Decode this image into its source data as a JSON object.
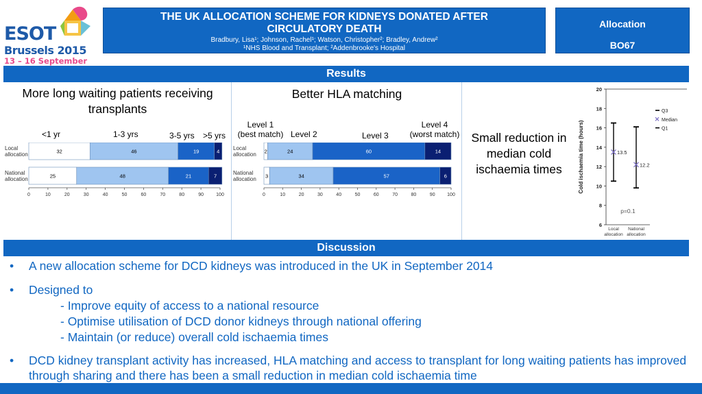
{
  "logo": {
    "brand": "ESOT",
    "city": "Brussels 2015",
    "dates": "13 – 16 September"
  },
  "header": {
    "title": "THE UK ALLOCATION SCHEME FOR KIDNEYS DONATED AFTER CIRCULATORY DEATH",
    "authors": "Bradbury, Lisa¹; Johnson, Rachel¹; Watson, Christopher²; Bradley, Andrew²",
    "affiliations": "¹NHS Blood and Transplant; ²Addenbrooke's Hospital",
    "topic": "Allocation",
    "code": "BO67"
  },
  "sections": {
    "results": "Results",
    "discussion": "Discussion"
  },
  "panel1": {
    "heading": "More long waiting patients receiving transplants",
    "categories": [
      "<1 yr",
      "1-3 yrs",
      "3-5 yrs",
      ">5 yrs"
    ]
  },
  "panel2": {
    "heading": "Better HLA matching",
    "categories": [
      "Level 1 (best match)",
      "Level 2",
      "Level 3",
      "Level 4 (worst match)"
    ],
    "cat_lines": [
      [
        "Level 1",
        "(best match)"
      ],
      [
        "Level 2"
      ],
      [
        "Level 3"
      ],
      [
        "Level 4",
        "(worst match)"
      ]
    ]
  },
  "panel3": {
    "text": "Small reduction in median cold ischaemia times"
  },
  "colors": {
    "c1": "#ffffff",
    "c2": "#9fc5f0",
    "c3": "#1a63c7",
    "c4": "#0a1f72",
    "accent": "#1167c2"
  },
  "chart_data": [
    {
      "type": "bar",
      "orientation": "horizontal-stacked-percent",
      "categories": [
        "Local allocation",
        "National allocation"
      ],
      "series": [
        {
          "name": "<1 yr",
          "values": [
            32,
            25
          ]
        },
        {
          "name": "1-3 yrs",
          "values": [
            46,
            48
          ]
        },
        {
          "name": "3-5 yrs",
          "values": [
            19,
            21
          ]
        },
        {
          "name": ">5 yrs",
          "values": [
            4,
            7
          ]
        }
      ],
      "xlim": [
        0,
        100
      ],
      "xticks": [
        0,
        10,
        20,
        30,
        40,
        50,
        60,
        70,
        80,
        90,
        100
      ]
    },
    {
      "type": "bar",
      "orientation": "horizontal-stacked-percent",
      "categories": [
        "Local allocation",
        "National allocation"
      ],
      "series": [
        {
          "name": "Level 1 (best match)",
          "values": [
            2,
            3
          ]
        },
        {
          "name": "Level 2",
          "values": [
            24,
            34
          ]
        },
        {
          "name": "Level 3",
          "values": [
            60,
            57
          ]
        },
        {
          "name": "Level 4 (worst match)",
          "values": [
            14,
            6
          ]
        }
      ],
      "xlim": [
        0,
        100
      ],
      "xticks": [
        0,
        10,
        20,
        30,
        40,
        50,
        60,
        70,
        80,
        90,
        100
      ]
    },
    {
      "type": "scatter",
      "ylabel": "Cold ischaemia time (hours)",
      "categories": [
        "Local allocation",
        "National allocation"
      ],
      "q3": [
        16.5,
        16.1
      ],
      "median": [
        13.5,
        12.2
      ],
      "q1": [
        10.5,
        9.8
      ],
      "median_labels": [
        "13.5",
        "12.2"
      ],
      "ylim": [
        6,
        20
      ],
      "yticks": [
        6,
        8,
        10,
        12,
        14,
        16,
        18,
        20
      ],
      "reference_line": 20,
      "annotation": "p=0.1",
      "legend": [
        "Q3",
        "Median",
        "Q1"
      ],
      "legend_position": "right"
    }
  ],
  "discussion": {
    "bullet1": "A new allocation scheme for DCD kidneys was introduced in the UK in September 2014",
    "bullet2": "Designed to",
    "sub1": "- Improve equity of access to a national resource",
    "sub2": "- Optimise utilisation of DCD donor kidneys through national offering",
    "sub3": "- Maintain (or reduce) overall cold ischaemia times",
    "bullet3": "DCD kidney transplant activity has increased, HLA matching and access to transplant for long waiting patients has improved through sharing and there has been a small reduction in median cold ischaemia time"
  }
}
